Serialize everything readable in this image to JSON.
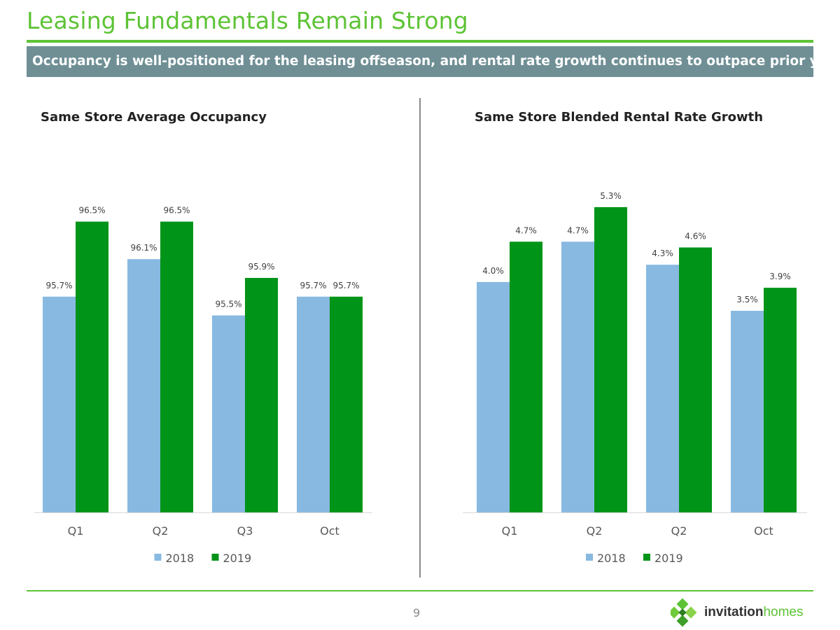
{
  "header": {
    "title": "Leasing Fundamentals Remain Strong",
    "subtitle": "Occupancy is well-positioned for the leasing offseason, and rental rate growth continues to outpace prior year"
  },
  "colors": {
    "brand_green": "#5dc335",
    "bar_2018": "#88b9e1",
    "bar_2019": "#009418",
    "subtitle_bg": "#6f8f95"
  },
  "chart_data": [
    {
      "type": "bar",
      "title": "Same Store Average Occupancy",
      "categories": [
        "Q1",
        "Q2",
        "Q3",
        "Oct"
      ],
      "series": [
        {
          "name": "2018",
          "values": [
            95.7,
            96.1,
            95.5,
            95.7
          ],
          "labels": [
            "95.7%",
            "96.1%",
            "95.5%",
            "95.7%"
          ]
        },
        {
          "name": "2019",
          "values": [
            96.5,
            96.5,
            95.9,
            95.7
          ],
          "labels": [
            "96.5%",
            "96.5%",
            "95.9%",
            "95.7%"
          ]
        }
      ],
      "xlabel": "",
      "ylabel": "",
      "ylim": [
        93.4,
        96.9
      ],
      "legend": "bottom",
      "grid": false
    },
    {
      "type": "bar",
      "title": "Same Store Blended Rental Rate Growth",
      "categories": [
        "Q1",
        "Q2",
        "Q2",
        "Oct"
      ],
      "series": [
        {
          "name": "2018",
          "values": [
            4.0,
            4.7,
            4.3,
            3.5
          ],
          "labels": [
            "4.0%",
            "4.7%",
            "4.3%",
            "3.5%"
          ]
        },
        {
          "name": "2019",
          "values": [
            4.7,
            5.3,
            4.6,
            3.9
          ],
          "labels": [
            "4.7%",
            "5.3%",
            "4.6%",
            "3.9%"
          ]
        }
      ],
      "xlabel": "",
      "ylabel": "",
      "ylim": [
        0,
        5.7
      ],
      "legend": "bottom",
      "grid": false
    }
  ],
  "footer": {
    "page_number": "9",
    "logo": {
      "word_a": "invitation",
      "word_b": "homes",
      "icon": "invitation-homes-diamond-logo-icon"
    }
  }
}
